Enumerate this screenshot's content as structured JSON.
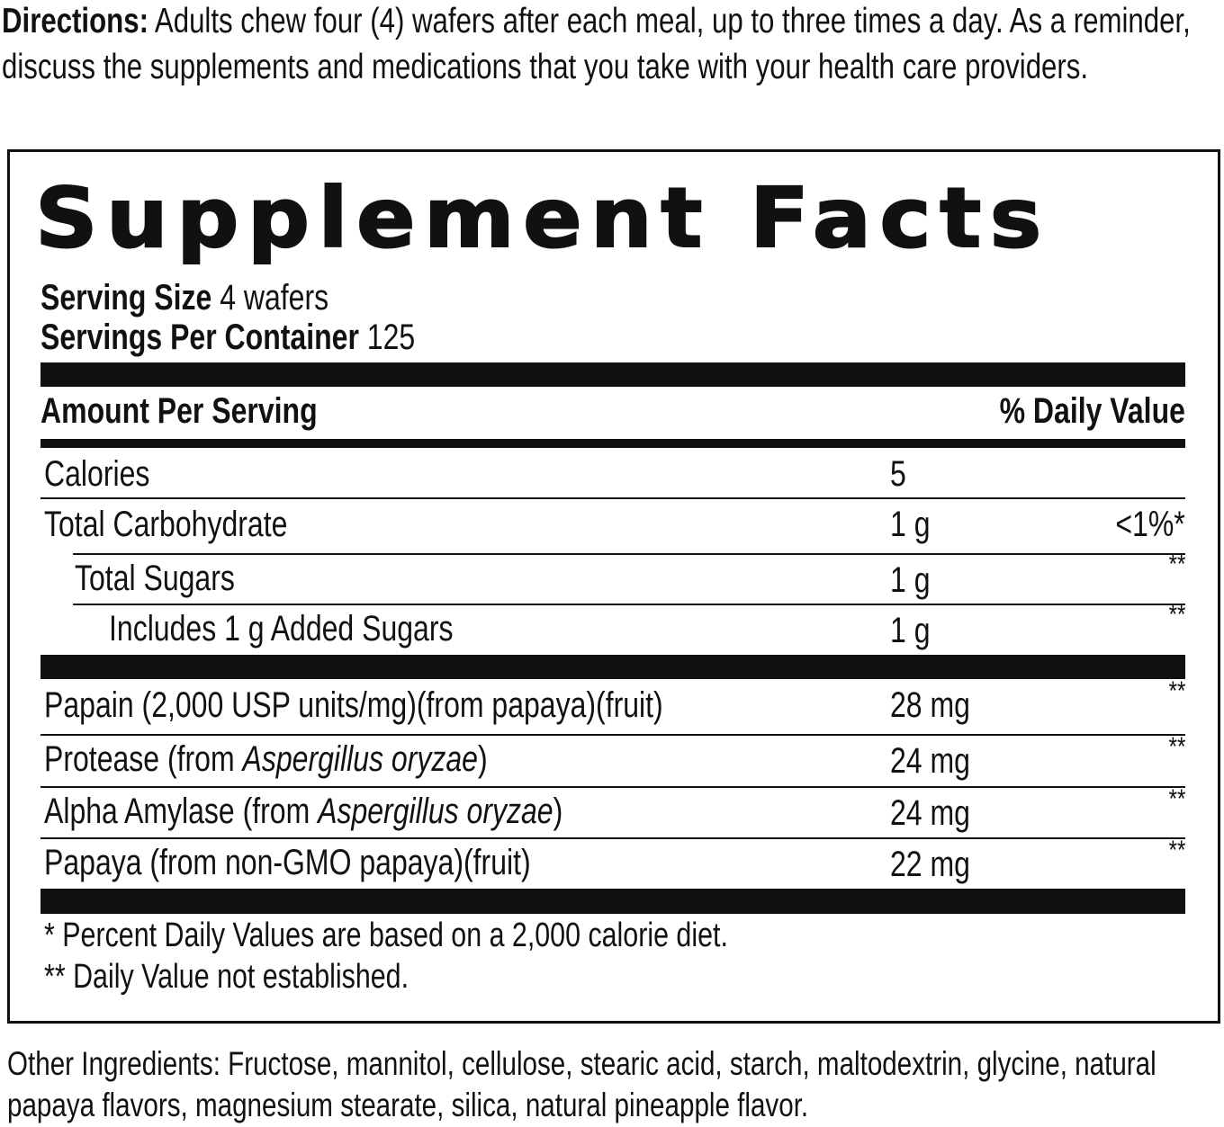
{
  "directions": {
    "label": "Directions:",
    "text": "Adults chew four (4) wafers after each meal, up to three times a day. As a reminder, discuss the supplements and medications that you take with your health care providers."
  },
  "panel": {
    "title": "Supplement Facts",
    "serving_size_label": "Serving Size",
    "serving_size_value": "4 wafers",
    "servings_label": "Servings Per Container",
    "servings_value": "125",
    "header_amount": "Amount Per Serving",
    "header_dv": "% Daily Value",
    "rows": [
      {
        "name": "Calories",
        "amount": "5",
        "dv": ""
      },
      {
        "name": "Total Carbohydrate",
        "amount": "1 g",
        "dv": "<1%*"
      },
      {
        "name": "Total Sugars",
        "amount": "1 g",
        "dv": "**"
      },
      {
        "name": "Includes 1 g Added Sugars",
        "amount": "1 g",
        "dv": "**"
      }
    ],
    "ingredients": [
      {
        "name": "Papain (2,000 USP units/mg)(from papaya)(fruit)",
        "amount": "28 mg",
        "dv": "**"
      },
      {
        "name_pre": "Protease (from ",
        "name_italic": "Aspergillus oryzae",
        "name_post": ")",
        "amount": "24 mg",
        "dv": "**"
      },
      {
        "name_pre": "Alpha Amylase (from ",
        "name_italic": "Aspergillus oryzae",
        "name_post": ")",
        "amount": "24 mg",
        "dv": "**"
      },
      {
        "name": "Papaya (from non-GMO papaya)(fruit)",
        "amount": "22 mg",
        "dv": "**"
      }
    ],
    "footnotes": [
      "* Percent Daily Values are based on a 2,000 calorie diet.",
      "** Daily Value not established."
    ]
  },
  "other_ingredients": "Other Ingredients: Fructose, mannitol, cellulose, stearic acid, starch, maltodextrin, glycine, natural papaya flavors, magnesium stearate, silica, natural pineapple flavor."
}
